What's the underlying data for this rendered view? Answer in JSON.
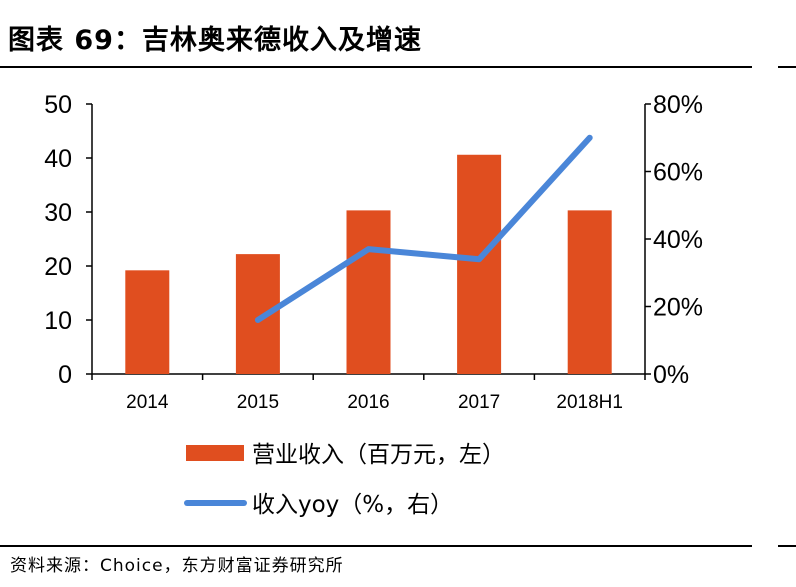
{
  "title": "图表 69：吉林奥来德收入及增速",
  "source": "资料来源：Choice，东方财富证券研究所",
  "colors": {
    "bar": "#E04E1F",
    "line": "#4A86D8",
    "axis": "#000000"
  },
  "chart_data": {
    "type": "bar",
    "categories": [
      "2014",
      "2015",
      "2016",
      "2017",
      "2018H1"
    ],
    "series": [
      {
        "name": "营业收入（百万元，左）",
        "type": "bar",
        "axis": "left",
        "values": [
          19.2,
          22.2,
          30.3,
          40.6,
          30.3
        ]
      },
      {
        "name": "收入yoy（%，右）",
        "type": "line",
        "axis": "right",
        "values": [
          null,
          16,
          37,
          34,
          70
        ]
      }
    ],
    "y_left": {
      "ylim": [
        0,
        50
      ],
      "ticks": [
        "0",
        "10",
        "20",
        "30",
        "40",
        "50"
      ]
    },
    "y_right": {
      "ylim": [
        0,
        80
      ],
      "ticks": [
        "0%",
        "20%",
        "40%",
        "60%",
        "80%"
      ]
    },
    "legend": "bottom"
  }
}
